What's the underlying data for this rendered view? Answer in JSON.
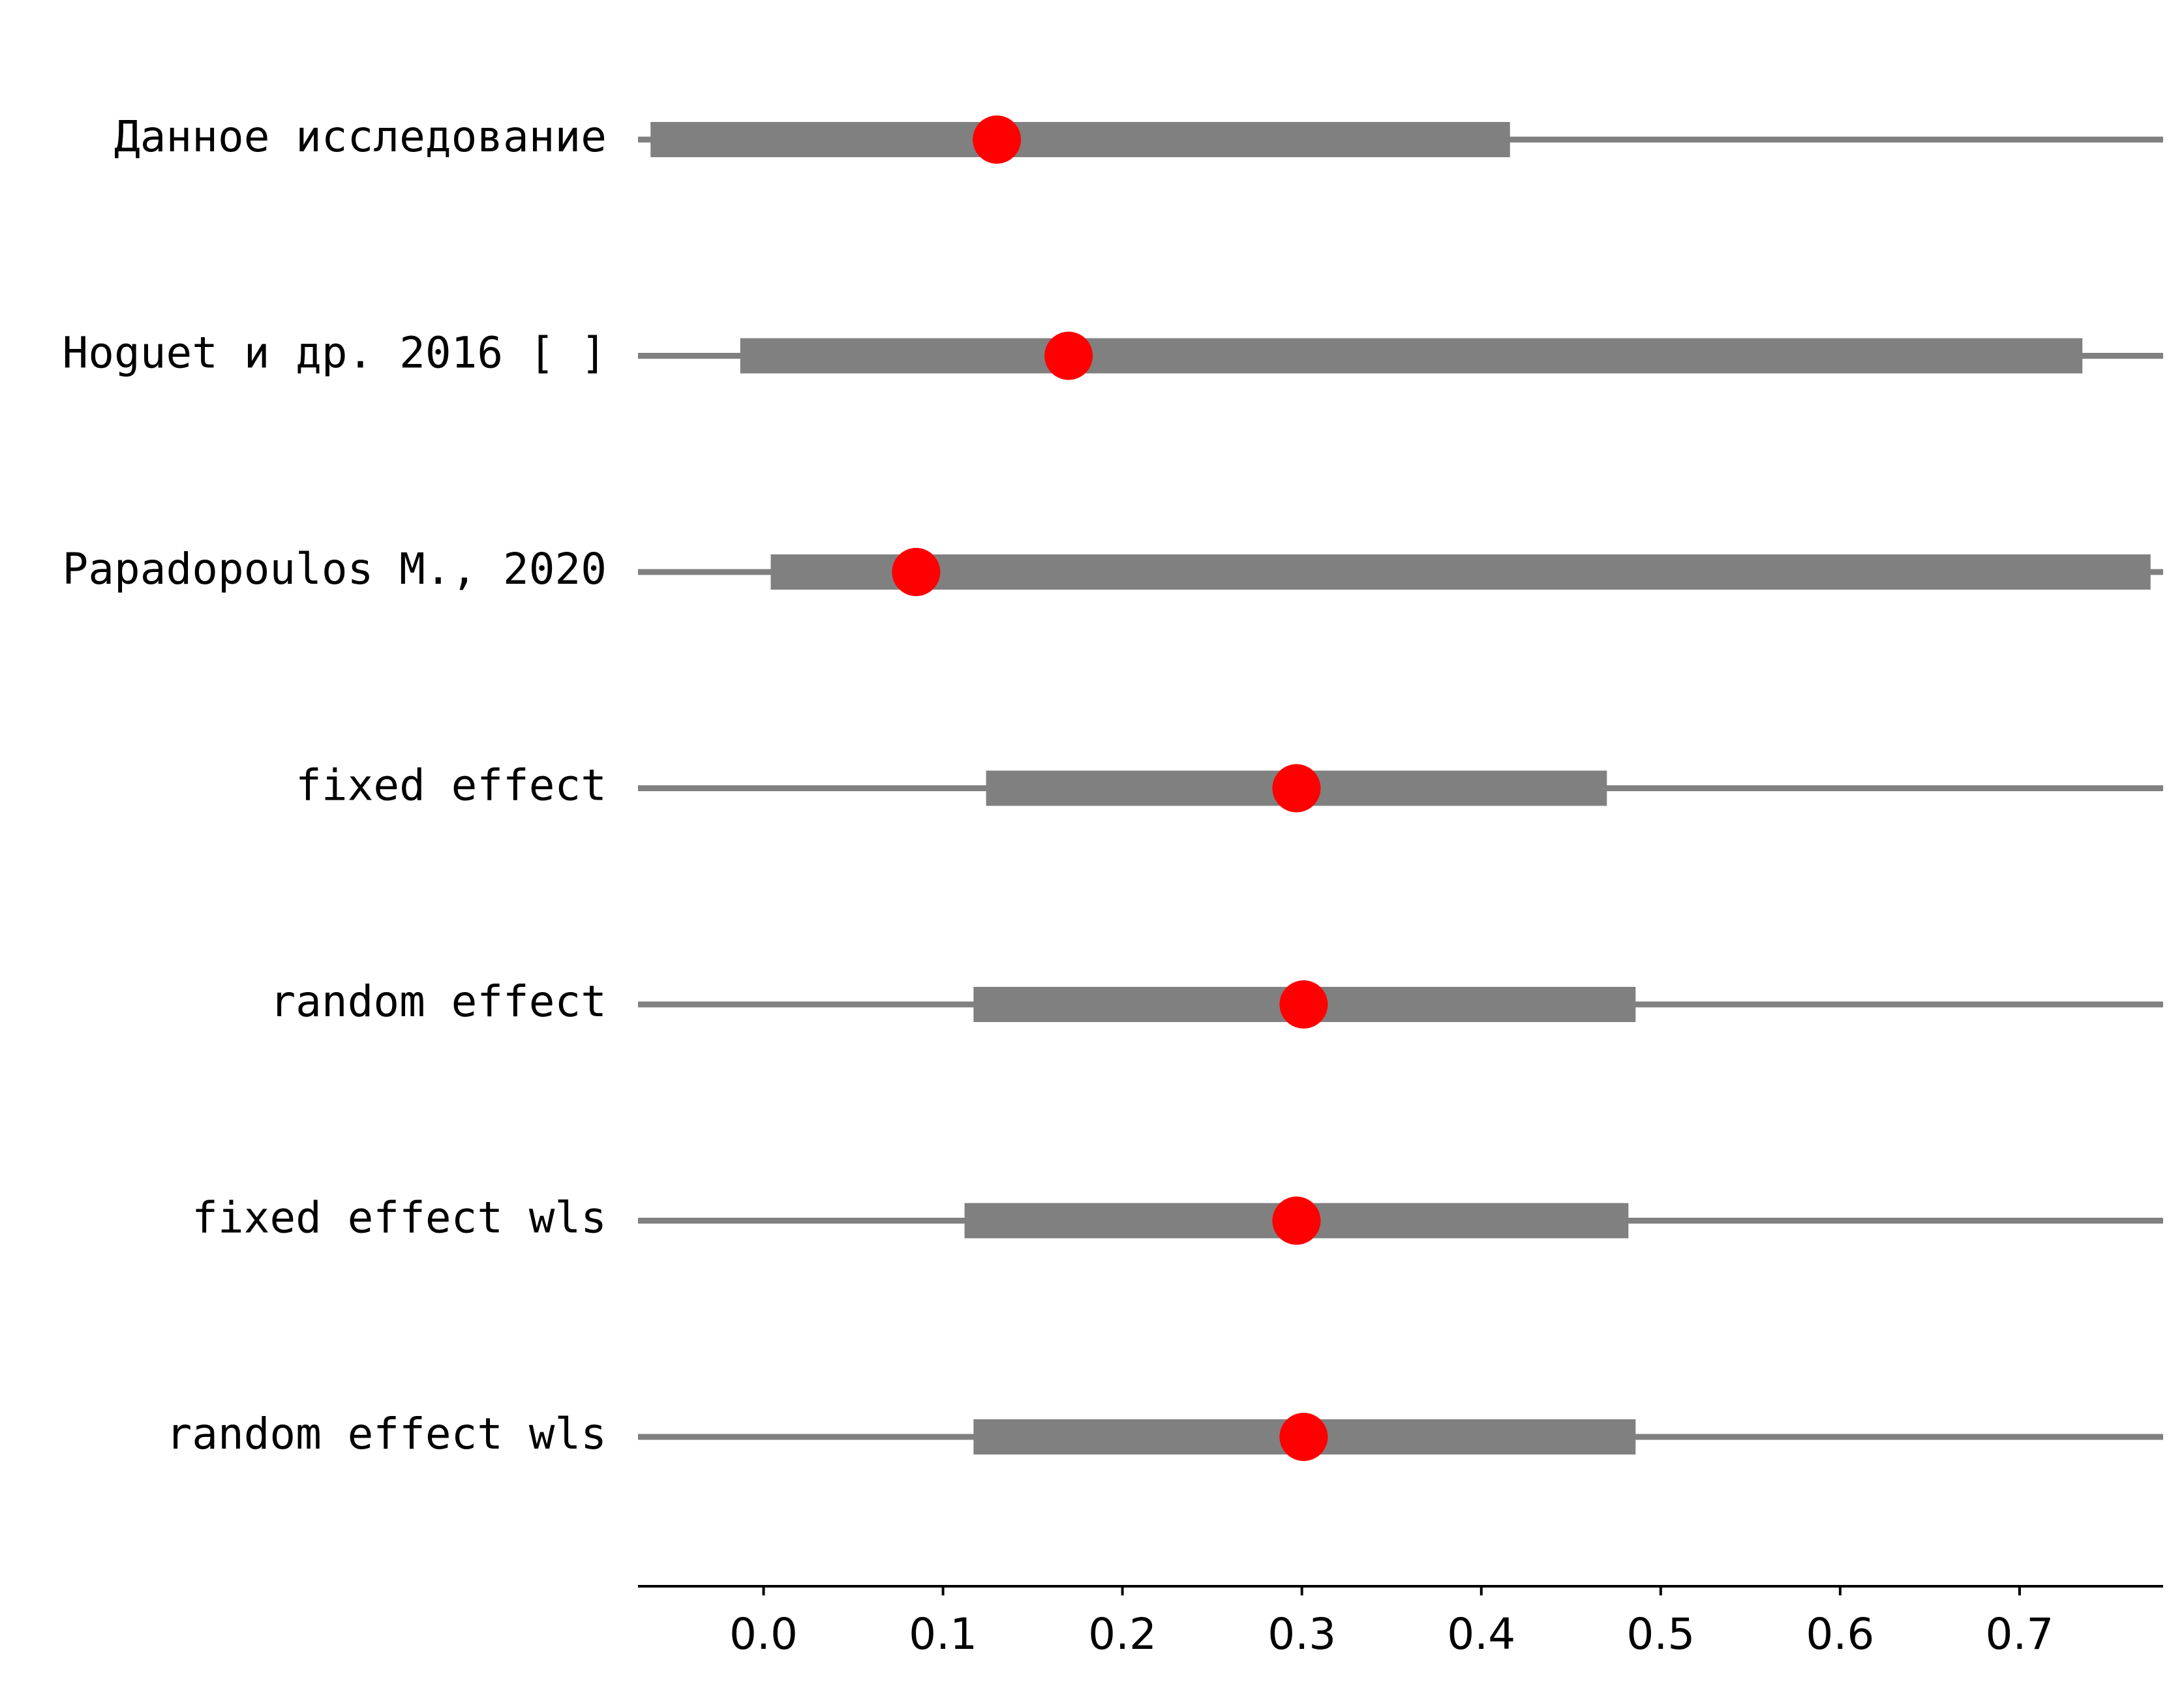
{
  "chart_data": {
    "type": "forest",
    "title": "",
    "xlabel": "",
    "ylabel": "",
    "xlim": [
      -0.07,
      0.78
    ],
    "xticks": [
      0.0,
      0.1,
      0.2,
      0.3,
      0.4,
      0.5,
      0.6,
      0.7
    ],
    "xtick_labels": [
      "0.0",
      "0.1",
      "0.2",
      "0.3",
      "0.4",
      "0.5",
      "0.6",
      "0.7"
    ],
    "grid": false,
    "colors": {
      "interval": "#808080",
      "point": "#ff0000",
      "axis": "#000000"
    },
    "rows": [
      {
        "label": "Данное исследование",
        "estimate": 0.13,
        "inner": [
          -0.063,
          0.416
        ],
        "outer": [
          -0.07,
          0.78
        ]
      },
      {
        "label": "Hoguet и др. 2016 [ ]",
        "estimate": 0.17,
        "inner": [
          -0.013,
          0.735
        ],
        "outer": [
          -0.07,
          0.78
        ]
      },
      {
        "label": "Papadopoulos M., 2020",
        "estimate": 0.085,
        "inner": [
          0.004,
          0.773
        ],
        "outer": [
          -0.07,
          0.78
        ]
      },
      {
        "label": "fixed effect",
        "estimate": 0.297,
        "inner": [
          0.124,
          0.47
        ],
        "outer": [
          -0.07,
          0.78
        ]
      },
      {
        "label": "random effect",
        "estimate": 0.301,
        "inner": [
          0.117,
          0.486
        ],
        "outer": [
          -0.07,
          0.78
        ]
      },
      {
        "label": "fixed effect wls",
        "estimate": 0.297,
        "inner": [
          0.112,
          0.482
        ],
        "outer": [
          -0.07,
          0.78
        ]
      },
      {
        "label": "random effect wls",
        "estimate": 0.301,
        "inner": [
          0.117,
          0.486
        ],
        "outer": [
          -0.07,
          0.78
        ]
      }
    ]
  }
}
